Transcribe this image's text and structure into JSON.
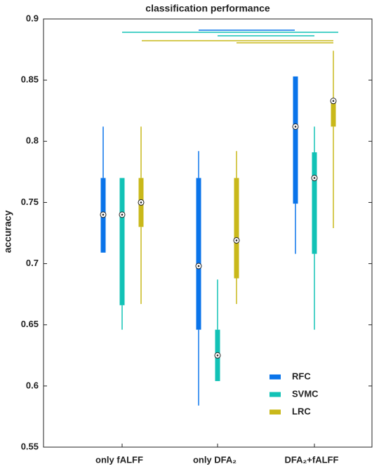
{
  "chart_data": {
    "type": "box",
    "title": "classification performance",
    "ylabel": "accuracy",
    "categories": [
      "only fALFF",
      "only DFA₂",
      "DFA₂+fALFF"
    ],
    "ylim": [
      0.55,
      0.9
    ],
    "yticks": [
      0.55,
      0.6,
      0.65,
      0.7,
      0.75,
      0.8,
      0.85,
      0.9
    ],
    "series": [
      {
        "name": "RFC",
        "color": "#0a74ea",
        "whisker_low": [
          0.709,
          0.584,
          0.708
        ],
        "q1": [
          0.709,
          0.646,
          0.749
        ],
        "median": [
          0.74,
          0.698,
          0.812
        ],
        "q3": [
          0.77,
          0.77,
          0.853
        ],
        "whisker_high": [
          0.812,
          0.792,
          0.853
        ]
      },
      {
        "name": "SVMC",
        "color": "#12c2b6",
        "whisker_low": [
          0.646,
          0.604,
          0.646
        ],
        "q1": [
          0.666,
          0.604,
          0.708
        ],
        "median": [
          0.74,
          0.625,
          0.77
        ],
        "q3": [
          0.77,
          0.646,
          0.791
        ],
        "whisker_high": [
          0.77,
          0.687,
          0.812
        ]
      },
      {
        "name": "LRC",
        "color": "#c9b81a",
        "whisker_low": [
          0.667,
          0.667,
          0.729
        ],
        "q1": [
          0.73,
          0.688,
          0.812
        ],
        "median": [
          0.75,
          0.719,
          0.833
        ],
        "q3": [
          0.77,
          0.77,
          0.833
        ],
        "whisker_high": [
          0.812,
          0.792,
          0.874
        ]
      }
    ]
  }
}
